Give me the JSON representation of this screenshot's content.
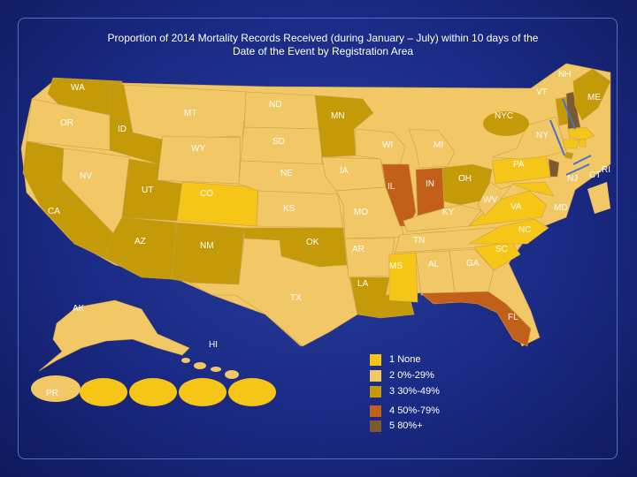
{
  "title": "Proportion of 2014 Mortality Records Received (during January – July) within 10 days of the Date of the Event by Registration Area",
  "colors": {
    "none": "#f5c518",
    "c0_29": "#f2c766",
    "c30_49": "#c49a08",
    "c50_79": "#c2601a",
    "c80": "#7a5a2e"
  },
  "states": {
    "WA": "WA",
    "OR": "OR",
    "CA": "CA",
    "NV": "NV",
    "ID": "ID",
    "MT": "MT",
    "WY": "WY",
    "UT": "UT",
    "AZ": "AZ",
    "CO": "CO",
    "NM": "NM",
    "ND": "ND",
    "SD": "SD",
    "NE": "NE",
    "KS": "KS",
    "OK": "OK",
    "TX": "TX",
    "MN": "MN",
    "IA": "IA",
    "MO": "MO",
    "AR": "AR",
    "LA": "LA",
    "WI": "WI",
    "IL": "IL",
    "MS": "MS",
    "MI": "MI",
    "IN": "IN",
    "KY": "KY",
    "TN": "TN",
    "AL": "AL",
    "OH": "OH",
    "WV": "WV",
    "GA": "GA",
    "FL": "FL",
    "SC": "SC",
    "NC": "NC",
    "VA": "VA",
    "MD": "MD",
    "PA": "PA",
    "NY": "NY",
    "NJ": "NJ",
    "VT": "VT",
    "NH": "NH",
    "ME": "ME",
    "RI": "RI",
    "CT": "CT",
    "NYC": "NYC",
    "AK": "AK",
    "HI": "HI",
    "PR": "PR"
  },
  "legend": [
    {
      "num": "1",
      "text": "None"
    },
    {
      "num": "2",
      "text": "0%-29%"
    },
    {
      "num": "3",
      "text": "30%-49%"
    },
    {
      "num": "4",
      "text": "50%-79%"
    },
    {
      "num": "5",
      "text": "80%+"
    }
  ]
}
